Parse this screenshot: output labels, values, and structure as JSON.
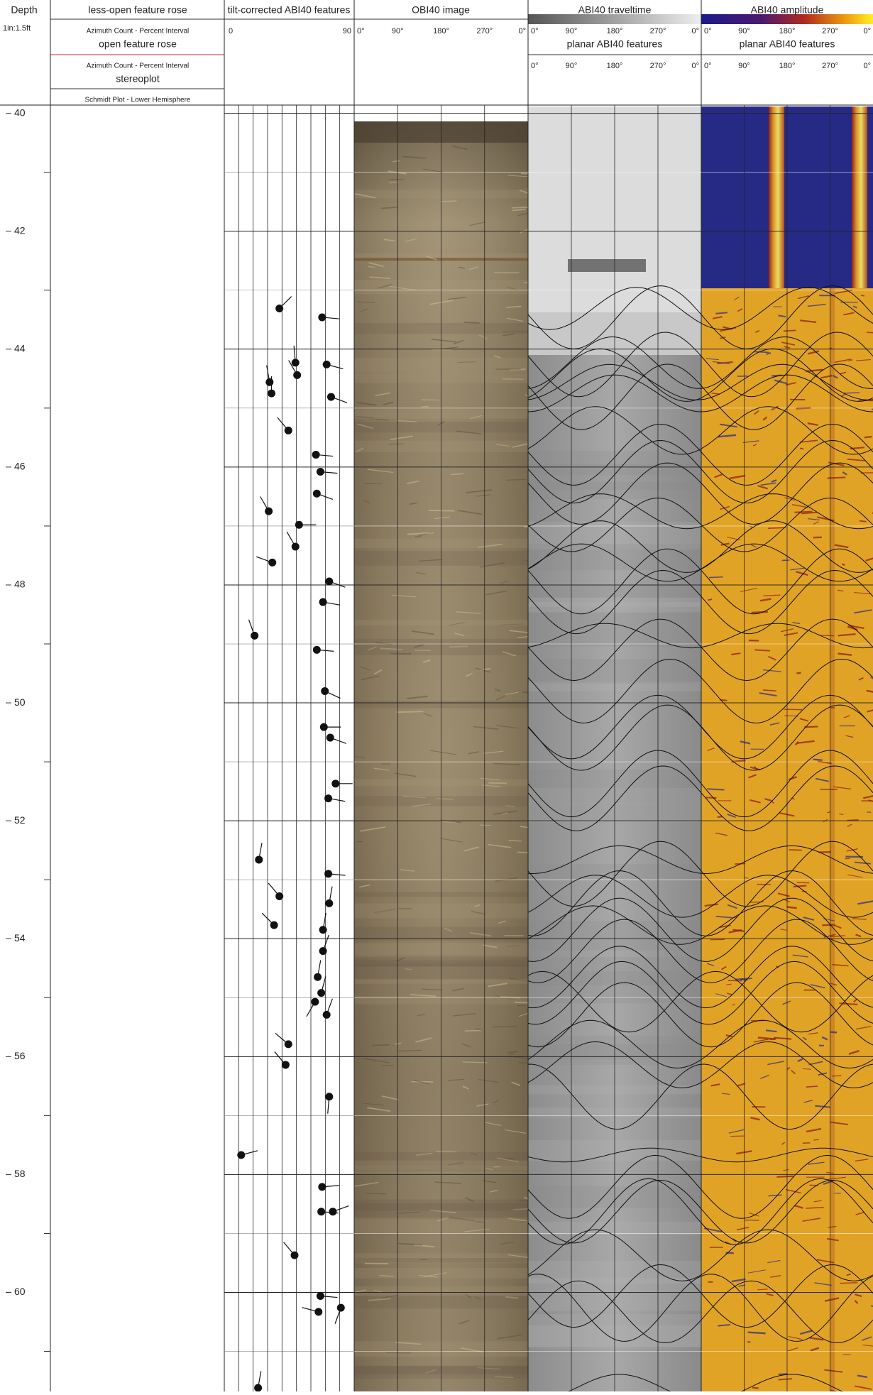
{
  "depth_track": {
    "title": "Depth",
    "scale": "1in:1.5ft",
    "range": [
      39.86,
      61.68
    ],
    "labels": [
      40,
      42,
      44,
      46,
      48,
      50,
      52,
      54,
      56,
      58,
      60
    ],
    "minor_ticks": [
      41,
      43,
      45,
      47,
      49,
      51,
      53,
      55,
      57,
      59,
      61
    ]
  },
  "rose_track": {
    "less_open_title": "less-open feature rose",
    "less_open_subtitle": "Azimuth Count - Percent Interval",
    "open_title": "open feature rose",
    "open_subtitle": "Azimuth Count - Percent Interval",
    "stereo_title": "stereoplot",
    "stereo_subtitle": "Schmidt Plot - Lower Hemisphere"
  },
  "tadpole_track": {
    "title": "tilt-corrected ABI40 features",
    "dip_range": [
      0,
      90
    ],
    "dip_ticks": [
      0,
      90
    ],
    "features": [
      {
        "depth": 43.31,
        "dip": 38.2,
        "azimuth": 45
      },
      {
        "depth": 43.46,
        "dip": 67.8,
        "azimuth": 95
      },
      {
        "depth": 44.56,
        "dip": 31.4,
        "azimuth": 350
      },
      {
        "depth": 44.23,
        "dip": 49.3,
        "azimuth": 355
      },
      {
        "depth": 44.75,
        "dip": 32.7,
        "azimuth": 0
      },
      {
        "depth": 44.44,
        "dip": 50.5,
        "azimuth": 330
      },
      {
        "depth": 44.26,
        "dip": 70.9,
        "azimuth": 105
      },
      {
        "depth": 44.81,
        "dip": 74.0,
        "azimuth": 110
      },
      {
        "depth": 45.38,
        "dip": 44.4,
        "azimuth": 320
      },
      {
        "depth": 45.79,
        "dip": 63.5,
        "azimuth": 95
      },
      {
        "depth": 46.08,
        "dip": 66.6,
        "azimuth": 95
      },
      {
        "depth": 46.45,
        "dip": 64.1,
        "azimuth": 110
      },
      {
        "depth": 46.75,
        "dip": 30.8,
        "azimuth": 330
      },
      {
        "depth": 46.98,
        "dip": 51.8,
        "azimuth": 90
      },
      {
        "depth": 47.35,
        "dip": 49.3,
        "azimuth": 330
      },
      {
        "depth": 47.62,
        "dip": 33.3,
        "azimuth": 290
      },
      {
        "depth": 47.94,
        "dip": 72.7,
        "azimuth": 110
      },
      {
        "depth": 48.29,
        "dip": 68.4,
        "azimuth": 100
      },
      {
        "depth": 48.86,
        "dip": 21.0,
        "azimuth": 340
      },
      {
        "depth": 49.1,
        "dip": 64.1,
        "azimuth": 95
      },
      {
        "depth": 49.8,
        "dip": 69.7,
        "azimuth": 115
      },
      {
        "depth": 50.41,
        "dip": 69.0,
        "azimuth": 90
      },
      {
        "depth": 50.59,
        "dip": 73.4,
        "azimuth": 110
      },
      {
        "depth": 51.37,
        "dip": 77.1,
        "azimuth": 90
      },
      {
        "depth": 51.62,
        "dip": 72.1,
        "azimuth": 100
      },
      {
        "depth": 52.66,
        "dip": 24.0,
        "azimuth": 10
      },
      {
        "depth": 53.28,
        "dip": 38.2,
        "azimuth": 320
      },
      {
        "depth": 52.9,
        "dip": 72.1,
        "azimuth": 95
      },
      {
        "depth": 53.4,
        "dip": 72.7,
        "azimuth": 10
      },
      {
        "depth": 53.77,
        "dip": 34.5,
        "azimuth": 315
      },
      {
        "depth": 53.85,
        "dip": 68.4,
        "azimuth": 10
      },
      {
        "depth": 54.21,
        "dip": 68.4,
        "azimuth": 20
      },
      {
        "depth": 54.65,
        "dip": 64.7,
        "azimuth": 10
      },
      {
        "depth": 54.92,
        "dip": 67.2,
        "azimuth": 15
      },
      {
        "depth": 55.07,
        "dip": 62.9,
        "azimuth": 210
      },
      {
        "depth": 55.29,
        "dip": 70.9,
        "azimuth": 20
      },
      {
        "depth": 55.79,
        "dip": 44.4,
        "azimuth": 310
      },
      {
        "depth": 56.14,
        "dip": 42.5,
        "azimuth": 320
      },
      {
        "depth": 56.68,
        "dip": 72.7,
        "azimuth": 185
      },
      {
        "depth": 57.67,
        "dip": 11.7,
        "azimuth": 75
      },
      {
        "depth": 58.21,
        "dip": 67.8,
        "azimuth": 85
      },
      {
        "depth": 58.63,
        "dip": 67.2,
        "azimuth": 95
      },
      {
        "depth": 58.63,
        "dip": 75.2,
        "azimuth": 70
      },
      {
        "depth": 59.37,
        "dip": 48.7,
        "azimuth": 320
      },
      {
        "depth": 60.06,
        "dip": 66.6,
        "azimuth": 95
      },
      {
        "depth": 60.33,
        "dip": 65.3,
        "azimuth": 285
      },
      {
        "depth": 60.26,
        "dip": 80.8,
        "azimuth": 200
      },
      {
        "depth": 61.62,
        "dip": 23.4,
        "azimuth": 10
      }
    ]
  },
  "obi_track": {
    "title": "OBI40 image",
    "azimuth_ticks": [
      {
        "value": 0,
        "label": "0°"
      },
      {
        "value": 90,
        "label": "90°"
      },
      {
        "value": 180,
        "label": "180°"
      },
      {
        "value": 270,
        "label": "270°"
      },
      {
        "value": 360,
        "label": "0°"
      }
    ]
  },
  "traveltime_track": {
    "title": "ABI40 traveltime",
    "azimuth_ticks": [
      {
        "value": 0,
        "label": "0°"
      },
      {
        "value": 90,
        "label": "90°"
      },
      {
        "value": 180,
        "label": "180°"
      },
      {
        "value": 270,
        "label": "270°"
      },
      {
        "value": 360,
        "label": "0°"
      }
    ],
    "feature_title": "planar ABI40 features",
    "feature_ticks": [
      {
        "value": 0,
        "label": "0°"
      },
      {
        "value": 90,
        "label": "90°"
      },
      {
        "value": 180,
        "label": "180°"
      },
      {
        "value": 270,
        "label": "270°"
      },
      {
        "value": 360,
        "label": "0°"
      }
    ]
  },
  "amplitude_track": {
    "title": "ABI40 amplitude",
    "azimuth_ticks": [
      {
        "value": 0,
        "label": "0°"
      },
      {
        "value": 90,
        "label": "90°"
      },
      {
        "value": 180,
        "label": "180°"
      },
      {
        "value": 270,
        "label": "270°"
      },
      {
        "value": 360,
        "label": "0°"
      }
    ],
    "feature_title": "planar ABI40 features",
    "feature_ticks": [
      {
        "value": 0,
        "label": "0°"
      },
      {
        "value": 90,
        "label": "90°"
      },
      {
        "value": 180,
        "label": "180°"
      },
      {
        "value": 270,
        "label": "270°"
      },
      {
        "value": 360,
        "label": "0°"
      }
    ]
  }
}
